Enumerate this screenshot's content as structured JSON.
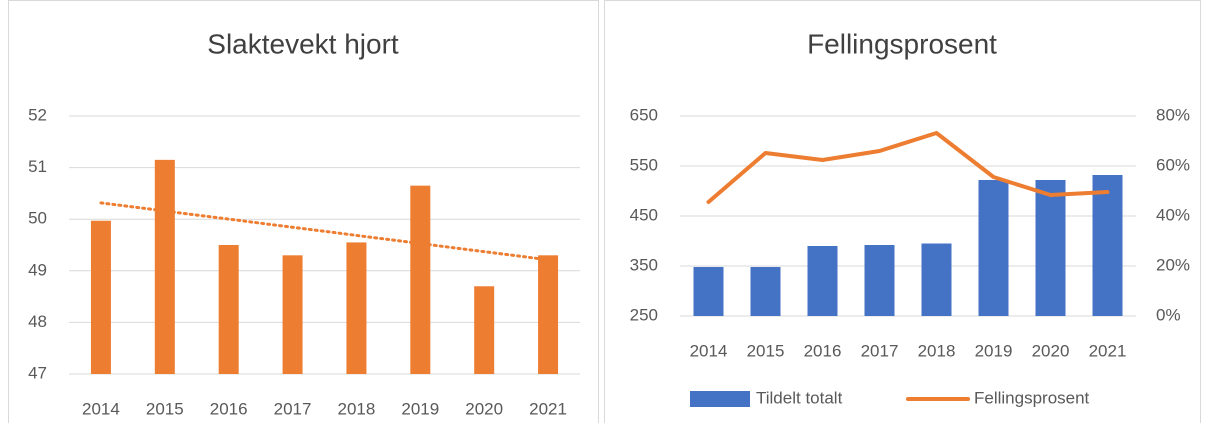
{
  "chart_data": [
    {
      "type": "bar",
      "title": "Slaktevekt hjort",
      "categories": [
        "2014",
        "2015",
        "2016",
        "2017",
        "2018",
        "2019",
        "2020",
        "2021"
      ],
      "values": [
        49.97,
        51.15,
        49.5,
        49.3,
        49.55,
        50.65,
        48.7,
        49.3
      ],
      "color": "#ed7d31",
      "trendline": true,
      "ylim": [
        47,
        52
      ],
      "yticks": [
        47,
        48,
        49,
        50,
        51,
        52
      ],
      "grid": true
    },
    {
      "type": "bar_line",
      "title": "Fellingsprosent",
      "categories": [
        "2014",
        "2015",
        "2016",
        "2017",
        "2018",
        "2019",
        "2020",
        "2021"
      ],
      "series": [
        {
          "name": "Tildelt totalt",
          "color": "#4472c4",
          "values": [
            348,
            348,
            390,
            392,
            395,
            522,
            522,
            532
          ]
        },
        {
          "name": "Fellingsprosent",
          "color": "#ed7d31",
          "axis": "y2",
          "values": [
            45.6,
            65.2,
            62.4,
            66,
            73.2,
            55.6,
            48.4,
            49.6
          ]
        }
      ],
      "ylim": [
        250,
        650
      ],
      "yticks": [
        250,
        350,
        450,
        550,
        650
      ],
      "y2lim": [
        0,
        80
      ],
      "y2ticks": [
        {
          "value": 0,
          "label": "0%"
        },
        {
          "value": 20,
          "label": "20%"
        },
        {
          "value": 40,
          "label": "40%"
        },
        {
          "value": 60,
          "label": "60%"
        },
        {
          "value": 80,
          "label": "80%"
        }
      ],
      "grid": true,
      "legend": "bottom"
    }
  ]
}
